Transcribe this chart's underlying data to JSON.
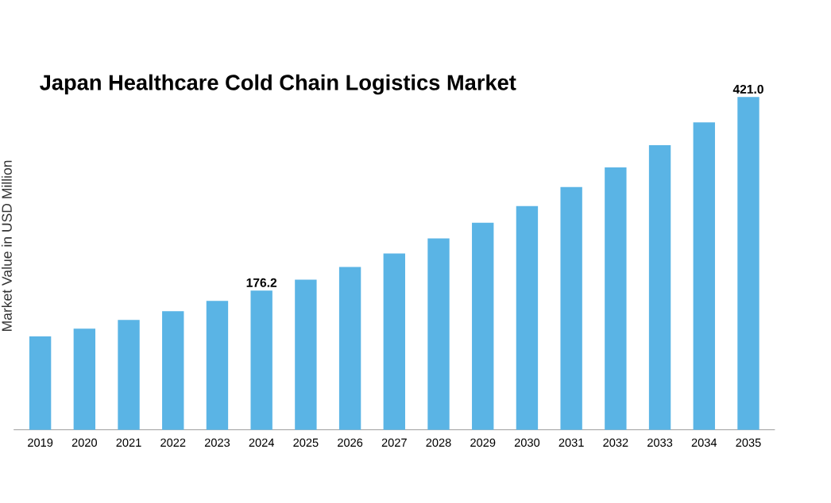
{
  "chart_data": {
    "type": "bar",
    "title": "Japan Healthcare Cold Chain Logistics Market",
    "ylabel": "Market Value in USD Million",
    "categories": [
      "2019",
      "2020",
      "2021",
      "2022",
      "2023",
      "2024",
      "2025",
      "2026",
      "2027",
      "2028",
      "2029",
      "2030",
      "2031",
      "2032",
      "2033",
      "2034",
      "2035"
    ],
    "values": [
      118,
      128,
      139,
      150,
      163,
      176.2,
      190,
      206,
      223,
      242,
      262,
      283,
      307,
      332,
      360,
      389,
      421.0
    ],
    "value_labels": [
      null,
      null,
      null,
      null,
      null,
      "176.2",
      null,
      null,
      null,
      null,
      null,
      null,
      null,
      null,
      null,
      null,
      "421.0"
    ],
    "color": "#5ab4e5"
  }
}
